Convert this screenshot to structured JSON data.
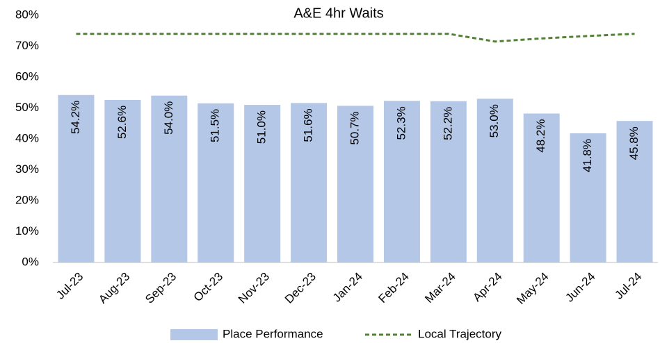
{
  "chart_data": {
    "type": "bar_line",
    "title": "A&E 4hr Waits",
    "categories": [
      "Jul-23",
      "Aug-23",
      "Sep-23",
      "Oct-23",
      "Nov-23",
      "Dec-23",
      "Jan-24",
      "Feb-24",
      "Mar-24",
      "Apr-24",
      "May-24",
      "Jun-24",
      "Jul-24"
    ],
    "series": [
      {
        "name": "Place Performance",
        "type": "bar",
        "color": "#b4c7e7",
        "values": [
          54.2,
          52.6,
          54.0,
          51.5,
          51.0,
          51.6,
          50.7,
          52.3,
          52.2,
          53.0,
          48.2,
          41.8,
          45.8
        ],
        "value_labels": [
          "54.2%",
          "52.6%",
          "54.0%",
          "51.5%",
          "51.0%",
          "51.6%",
          "50.7%",
          "52.3%",
          "52.2%",
          "53.0%",
          "48.2%",
          "41.8%",
          "45.8%"
        ]
      },
      {
        "name": "Local Trajectory",
        "type": "line",
        "color": "#548235",
        "dashed": true,
        "values": [
          74,
          74,
          74,
          74,
          74,
          74,
          74,
          74,
          74,
          71.5,
          72.5,
          73.3,
          74
        ]
      }
    ],
    "ylim": [
      0,
      80
    ],
    "yticks": [
      {
        "value": 0,
        "label": "0%"
      },
      {
        "value": 10,
        "label": "10%"
      },
      {
        "value": 20,
        "label": "20%"
      },
      {
        "value": 30,
        "label": "30%"
      },
      {
        "value": 40,
        "label": "40%"
      },
      {
        "value": 50,
        "label": "50%"
      },
      {
        "value": 60,
        "label": "60%"
      },
      {
        "value": 70,
        "label": "70%"
      },
      {
        "value": 80,
        "label": "80%"
      }
    ],
    "grid": false,
    "legend": "bottom"
  }
}
